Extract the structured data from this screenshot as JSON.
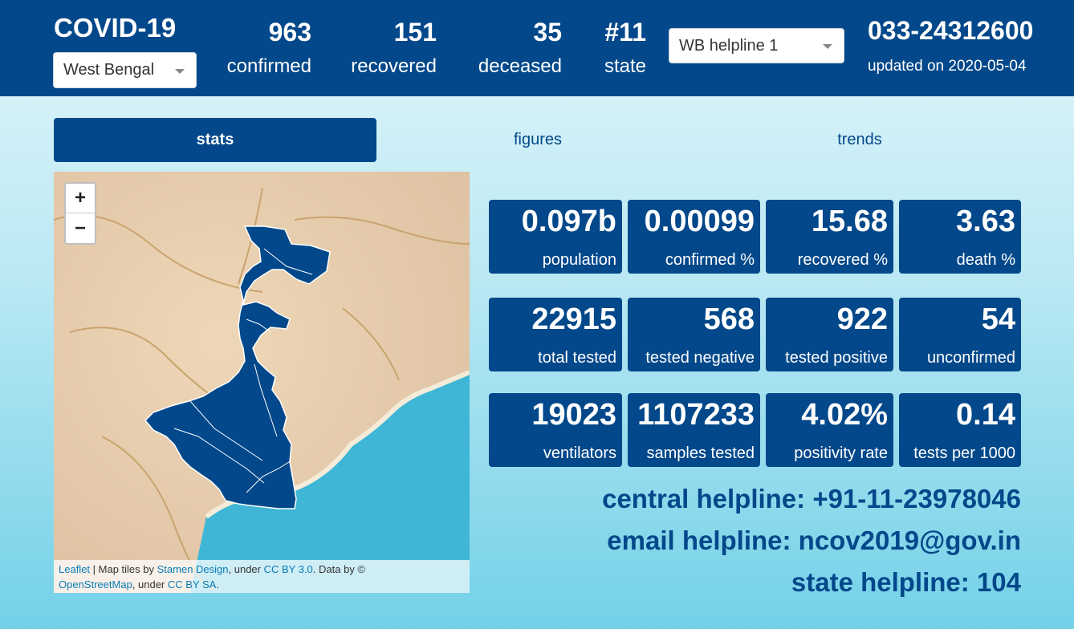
{
  "header": {
    "brand": "COVID-19",
    "state_select": "West Bengal",
    "stats": [
      {
        "value": "963",
        "label": "confirmed"
      },
      {
        "value": "151",
        "label": "recovered"
      },
      {
        "value": "35",
        "label": "deceased"
      },
      {
        "value": "#11",
        "label": "state"
      }
    ],
    "helpline_select": "WB helpline 1",
    "phone": "033-24312600",
    "updated": "updated on 2020-05-04"
  },
  "tabs": [
    {
      "label": "stats",
      "active": true
    },
    {
      "label": "figures",
      "active": false
    },
    {
      "label": "trends",
      "active": false
    }
  ],
  "map": {
    "zoom_in": "+",
    "zoom_out": "−",
    "attribution": {
      "leaflet": "Leaflet",
      "sep1": " | Map tiles by ",
      "stamen": "Stamen Design",
      "sep2": ", under ",
      "ccby": "CC BY 3.0",
      "sep3": ". Data by ©",
      "osm": "OpenStreetMap",
      "sep4": ", under ",
      "ccbysa": "CC BY SA",
      "end": "."
    },
    "colors": {
      "region": "#02488a",
      "sea": "#3fb6d6",
      "land": "#e8cfb0"
    }
  },
  "cards": [
    {
      "value": "0.097b",
      "label": "population"
    },
    {
      "value": "0.00099",
      "label": "confirmed %"
    },
    {
      "value": "15.68",
      "label": "recovered %"
    },
    {
      "value": "3.63",
      "label": "death %"
    },
    {
      "value": "22915",
      "label": "total tested"
    },
    {
      "value": "568",
      "label": "tested negative"
    },
    {
      "value": "922",
      "label": "tested positive"
    },
    {
      "value": "54",
      "label": "unconfirmed"
    },
    {
      "value": "19023",
      "label": "ventilators"
    },
    {
      "value": "1107233",
      "label": "samples tested"
    },
    {
      "value": "4.02%",
      "label": "positivity rate"
    },
    {
      "value": "0.14",
      "label": "tests per 1000"
    }
  ],
  "helplines": {
    "central": "central helpline: +91-11-23978046",
    "email": "email helpline: ncov2019@gov.in",
    "state": "state helpline: 104"
  },
  "colors": {
    "primary": "#02488a"
  }
}
